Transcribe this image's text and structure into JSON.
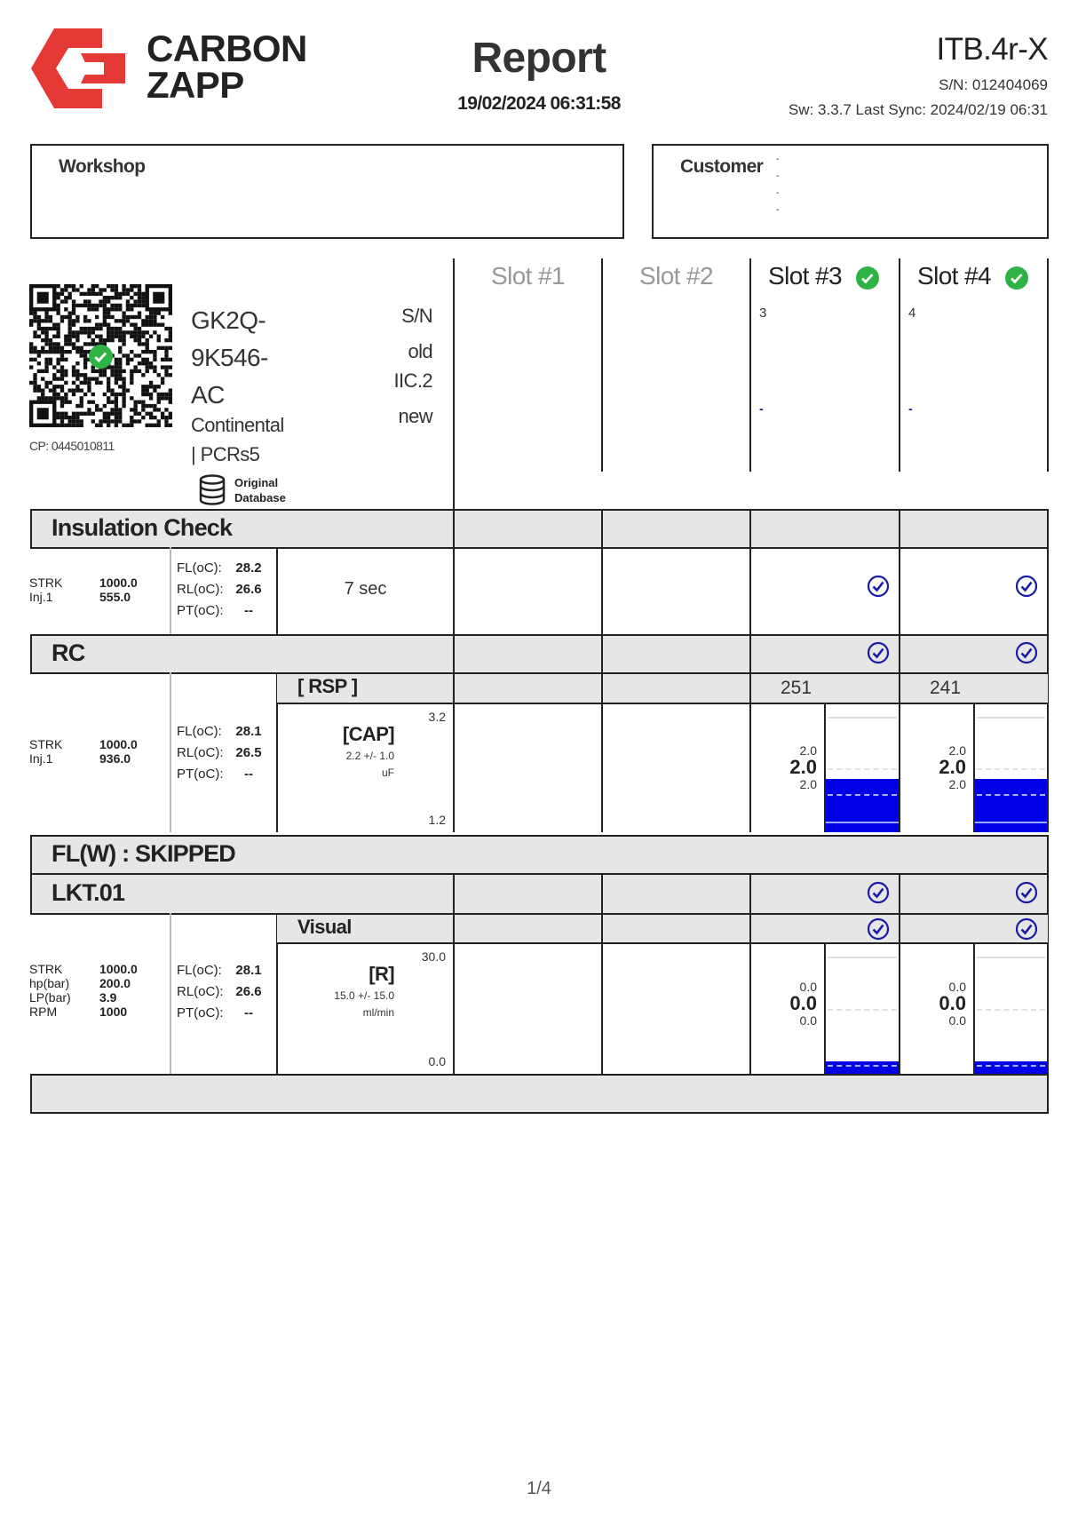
{
  "header": {
    "brand_lines": [
      "CARBON",
      "ZAPP"
    ],
    "brand_color": "#e53935",
    "title": "Report",
    "datetime": "19/02/2024 06:31:58",
    "model": "ITB.4r-X",
    "serial": "S/N: 012404069",
    "software": "Sw: 3.3.7 Last Sync: 2024/02/19 06:31"
  },
  "workshop": {
    "label": "Workshop"
  },
  "customer": {
    "label": "Customer",
    "lines": [
      "-",
      "-",
      "-",
      "-"
    ]
  },
  "part": {
    "qr_icon": "qr-code",
    "qr_status": "verified",
    "cp": "CP: 0445010811",
    "number_lines": [
      "GK2Q-",
      "9K546-",
      "AC"
    ],
    "maker_lines": [
      "Continental",
      "| PCRs5"
    ],
    "right_labels": [
      "S/N",
      "old",
      "IIC.2",
      "new"
    ],
    "database_lines": [
      "Original",
      "Database"
    ]
  },
  "slots": [
    {
      "title": "Slot #1",
      "active": false,
      "id": "",
      "dash": ""
    },
    {
      "title": "Slot #2",
      "active": false,
      "id": "",
      "dash": ""
    },
    {
      "title": "Slot #3",
      "active": true,
      "id": "3",
      "dash": "-"
    },
    {
      "title": "Slot #4",
      "active": true,
      "id": "4",
      "dash": "-"
    }
  ],
  "insulation": {
    "title": "Insulation Check",
    "params": [
      {
        "k": "STRK",
        "v": "1000.0"
      },
      {
        "k": "Inj.1",
        "v": "555.0"
      }
    ],
    "temps": [
      {
        "k": "FL(oC):",
        "v": "28.2"
      },
      {
        "k": "RL(oC):",
        "v": "26.6"
      },
      {
        "k": "PT(oC):",
        "v": "--"
      }
    ],
    "duration": "7 sec",
    "slot_pass": [
      false,
      false,
      true,
      true
    ]
  },
  "rc": {
    "title": "RC",
    "header_pass": [
      false,
      false,
      true,
      true
    ],
    "sub_title": "[ RSP ]",
    "params": [
      {
        "k": "STRK",
        "v": "1000.0"
      },
      {
        "k": "Inj.1",
        "v": "936.0"
      }
    ],
    "temps": [
      {
        "k": "FL(oC):",
        "v": "28.1"
      },
      {
        "k": "RL(oC):",
        "v": "26.5"
      },
      {
        "k": "PT(oC):",
        "v": "--"
      }
    ],
    "metric": "[CAP]",
    "tolerance": "2.2 +/- 1.0",
    "unit": "uF",
    "max": "3.2",
    "min": "1.2",
    "slot_codes": [
      "",
      "",
      "251",
      "241"
    ],
    "readings": [
      null,
      null,
      {
        "hi": "2.0",
        "val": "2.0",
        "lo": "2.0",
        "value": 2.0
      },
      {
        "hi": "2.0",
        "val": "2.0",
        "lo": "2.0",
        "value": 2.0
      }
    ],
    "range": [
      1.2,
      3.2
    ],
    "nominal": 2.2
  },
  "flw": {
    "title": "FL(W) : SKIPPED"
  },
  "lkt": {
    "title": "LKT.01",
    "header_pass": [
      false,
      false,
      true,
      true
    ],
    "sub_title": "Visual",
    "sub_pass": [
      false,
      false,
      true,
      true
    ],
    "params": [
      {
        "k": "STRK",
        "v": "1000.0"
      },
      {
        "k": "hp(bar)",
        "v": "200.0"
      },
      {
        "k": "LP(bar)",
        "v": "3.9"
      },
      {
        "k": "RPM",
        "v": "1000"
      }
    ],
    "temps": [
      {
        "k": "FL(oC):",
        "v": "28.1"
      },
      {
        "k": "RL(oC):",
        "v": "26.6"
      },
      {
        "k": "PT(oC):",
        "v": "--"
      }
    ],
    "metric": "[R]",
    "tolerance": "15.0 +/- 15.0",
    "unit": "ml/min",
    "max": "30.0",
    "min": "0.0",
    "readings": [
      null,
      null,
      {
        "hi": "0.0",
        "val": "0.0",
        "lo": "0.0",
        "value": 0.0
      },
      {
        "hi": "0.0",
        "val": "0.0",
        "lo": "0.0",
        "value": 0.0
      }
    ],
    "range": [
      0,
      30
    ],
    "nominal": 15.0
  },
  "footer": {
    "page": "1/4"
  },
  "colors": {
    "pass_green": "#2fb344",
    "check_blue": "#1a1aa6",
    "bar_blue": "#0000e6",
    "section_gray": "#e6e6e6"
  }
}
